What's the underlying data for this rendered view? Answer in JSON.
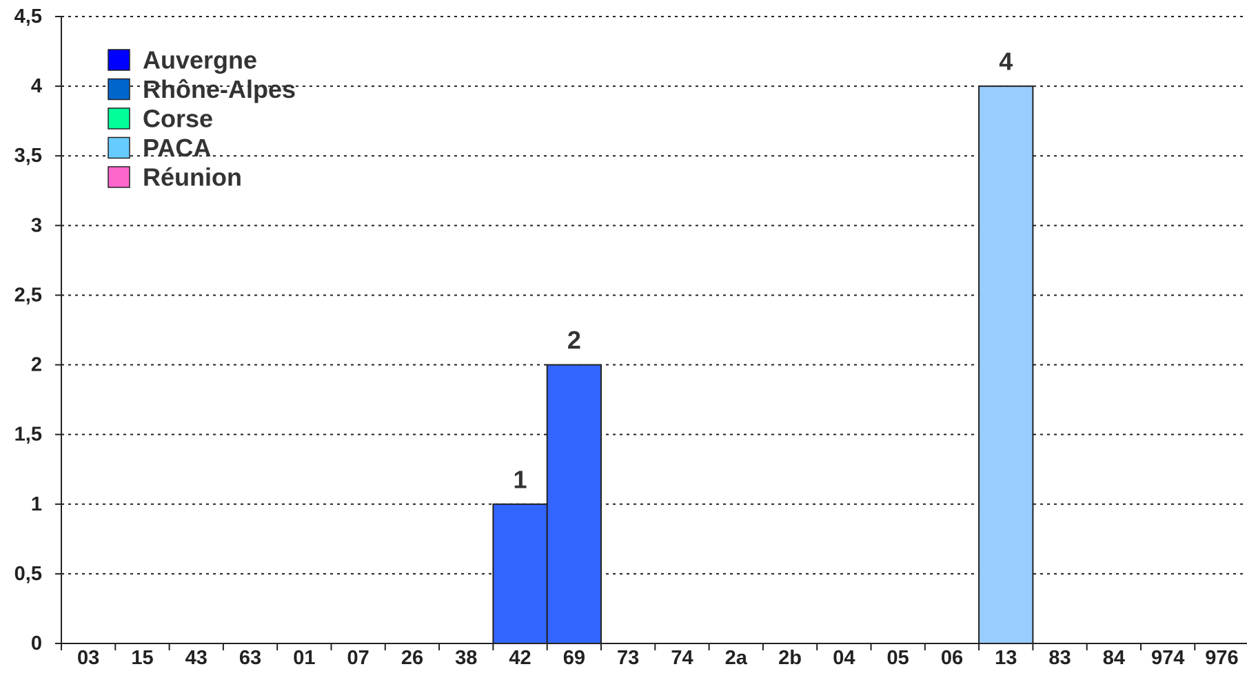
{
  "chart_data": {
    "type": "bar",
    "title": "",
    "xlabel": "",
    "ylabel": "",
    "ylim": [
      0,
      4.5
    ],
    "yticks": [
      {
        "value": 0,
        "label": "0"
      },
      {
        "value": 0.5,
        "label": "0,5"
      },
      {
        "value": 1,
        "label": "1"
      },
      {
        "value": 1.5,
        "label": "1,5"
      },
      {
        "value": 2,
        "label": "2"
      },
      {
        "value": 2.5,
        "label": "2,5"
      },
      {
        "value": 3,
        "label": "3"
      },
      {
        "value": 3.5,
        "label": "3,5"
      },
      {
        "value": 4,
        "label": "4"
      },
      {
        "value": 4.5,
        "label": "4,5"
      }
    ],
    "categories": [
      "03",
      "15",
      "43",
      "63",
      "01",
      "07",
      "26",
      "38",
      "42",
      "69",
      "73",
      "74",
      "2a",
      "2b",
      "04",
      "05",
      "06",
      "13",
      "83",
      "84",
      "974",
      "976"
    ],
    "category_region": [
      "Auvergne",
      "Auvergne",
      "Auvergne",
      "Auvergne",
      "Rhône-Alpes",
      "Rhône-Alpes",
      "Rhône-Alpes",
      "Rhône-Alpes",
      "Rhône-Alpes",
      "Rhône-Alpes",
      "Rhône-Alpes",
      "Rhône-Alpes",
      "Corse",
      "Corse",
      "PACA",
      "PACA",
      "PACA",
      "PACA",
      "PACA",
      "PACA",
      "Réunion",
      "Réunion"
    ],
    "values": [
      0,
      0,
      0,
      0,
      0,
      0,
      0,
      0,
      1,
      2,
      0,
      0,
      0,
      0,
      0,
      0,
      0,
      4,
      0,
      0,
      0,
      0
    ],
    "bar_colors": [
      "#3366ff",
      "#3366ff",
      "#3366ff",
      "#3366ff",
      "#3366ff",
      "#3366ff",
      "#3366ff",
      "#3366ff",
      "#3366ff",
      "#3366ff",
      "#3366ff",
      "#3366ff",
      "#3366ff",
      "#3366ff",
      "#99ccff",
      "#99ccff",
      "#99ccff",
      "#99ccff",
      "#99ccff",
      "#99ccff",
      "#99ccff",
      "#99ccff"
    ],
    "data_labels": [
      "",
      "",
      "",
      "",
      "",
      "",
      "",
      "",
      "1",
      "2",
      "",
      "",
      "",
      "",
      "",
      "",
      "",
      "4",
      "",
      "",
      "",
      ""
    ],
    "legend": {
      "placement": "top-left",
      "entries": [
        {
          "name": "Auvergne",
          "color": "#0000ff"
        },
        {
          "name": "Rhône-Alpes",
          "color": "#0066cc"
        },
        {
          "name": "Corse",
          "color": "#00ff99"
        },
        {
          "name": "PACA",
          "color": "#66ccff"
        },
        {
          "name": "Réunion",
          "color": "#ff66cc"
        }
      ]
    },
    "grid": "horizontal-dotted"
  }
}
